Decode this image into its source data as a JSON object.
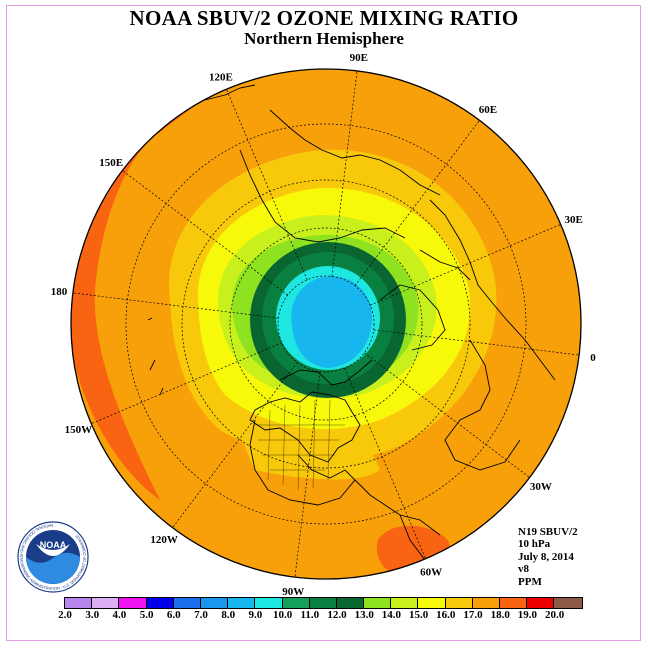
{
  "title": "NOAA SBUV/2 OZONE MIXING RATIO",
  "subtitle": "Northern Hemisphere",
  "longitude_labels": [
    "0",
    "30E",
    "60E",
    "90E",
    "120E",
    "150E",
    "180",
    "150W",
    "120W",
    "90W",
    "60W",
    "30W"
  ],
  "info": {
    "satellite": "N19 SBUV/2",
    "pressure": "10 hPa",
    "date": "July 8, 2014",
    "version": "v8",
    "units": "PPM"
  },
  "colorbar": {
    "ticks": [
      "2.0",
      "3.0",
      "4.0",
      "5.0",
      "6.0",
      "7.0",
      "8.0",
      "9.0",
      "10.0",
      "11.0",
      "12.0",
      "13.0",
      "14.0",
      "15.0",
      "16.0",
      "17.0",
      "18.0",
      "19.0",
      "20.0"
    ],
    "colors": [
      "#b884ee",
      "#dcb0f2",
      "#f012f0",
      "#0000ee",
      "#1c70ee",
      "#1a96ee",
      "#18b6ee",
      "#1ee6e0",
      "#14a05a",
      "#0a8040",
      "#0a6630",
      "#8ee220",
      "#c8f01c",
      "#f8f80a",
      "#f8c80a",
      "#f8a00a",
      "#f86412",
      "#ee0000",
      "#8e5a48"
    ]
  },
  "logo": {
    "name": "NOAA",
    "ring_text": "NATIONAL OCEANIC AND ATMOSPHERIC ADMINISTRATION · U.S. DEPARTMENT OF COMMERCE"
  },
  "field_colors": {
    "orange_red": "#f86412",
    "orange": "#f8a00a",
    "gold": "#f8c80a",
    "yellow": "#f8f80a",
    "yellow_green": "#c8f01c",
    "light_green": "#8ee220",
    "dark_green": "#0a6630",
    "green": "#0a8040",
    "cyan": "#1ee6e0",
    "sky": "#18b6ee"
  }
}
